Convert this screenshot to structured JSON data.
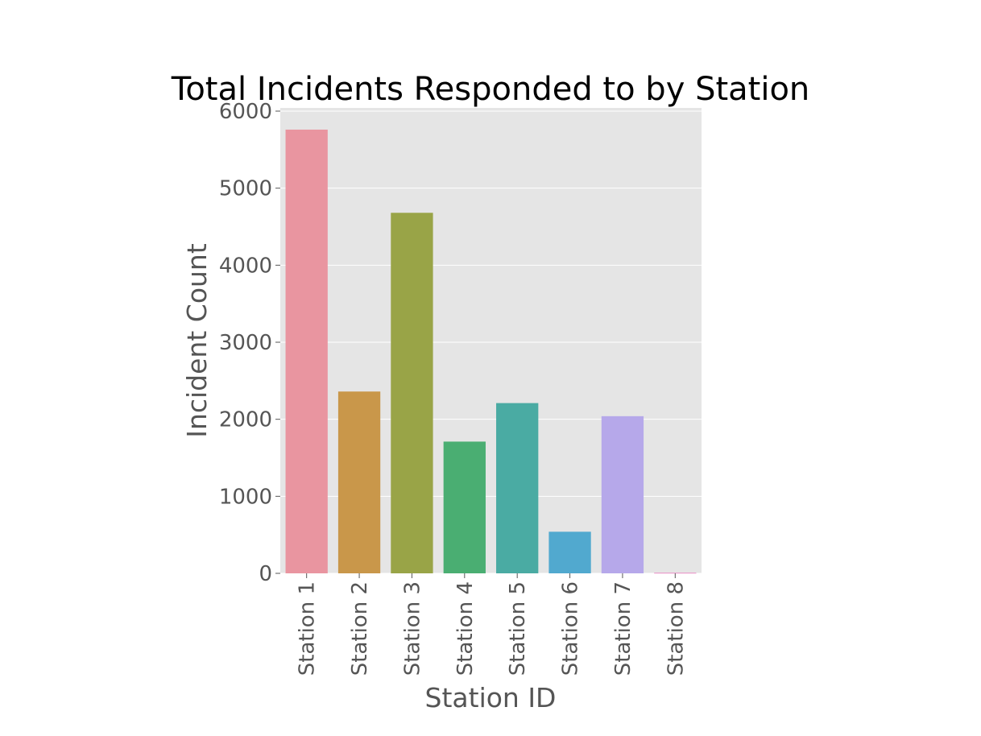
{
  "chart_data": {
    "type": "bar",
    "title": "Total Incidents Responded to by Station",
    "xlabel": "Station ID",
    "ylabel": "Incident Count",
    "categories": [
      "Station 1",
      "Station 2",
      "Station 3",
      "Station 4",
      "Station 5",
      "Station 6",
      "Station 7",
      "Station 8"
    ],
    "values": [
      5760,
      2360,
      4680,
      1710,
      2210,
      540,
      2040,
      8
    ],
    "colors": [
      "#e995a0",
      "#c9974a",
      "#99a447",
      "#4aae72",
      "#4aaba3",
      "#51a9cf",
      "#b6a8ea",
      "#ea8ec6"
    ],
    "yticks": [
      "0",
      "1000",
      "2000",
      "3000",
      "4000",
      "5000",
      "6000"
    ],
    "ylim": [
      0,
      6000
    ],
    "grid": true,
    "background": "#e5e5e5"
  }
}
